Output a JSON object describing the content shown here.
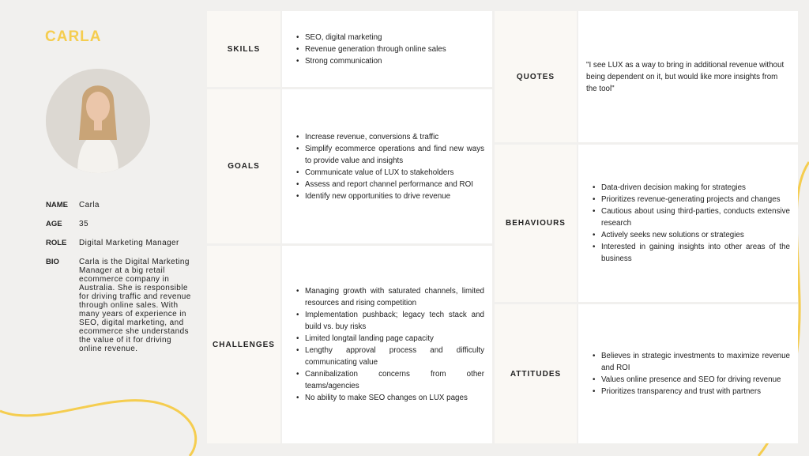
{
  "persona": {
    "title": "CARLA",
    "accent": "#f5cd4f",
    "facts": [
      {
        "k": "NAME",
        "v": "Carla"
      },
      {
        "k": "AGE",
        "v": "35"
      },
      {
        "k": "ROLE",
        "v": "Digital Marketing Manager"
      },
      {
        "k": "BIO",
        "v": "Carla is the  Digital Marketing Manager at a big retail ecommerce company in Australia. She is responsible for driving traffic and revenue through online sales. With many years of experience in SEO, digital marketing, and ecommerce she understands the value of it for driving online revenue."
      }
    ]
  },
  "sections": {
    "skills": {
      "label": "SKILLS",
      "items": [
        "SEO, digital marketing",
        "Revenue generation through online sales",
        "Strong communication"
      ]
    },
    "goals": {
      "label": "GOALS",
      "items": [
        "Increase revenue, conversions & traffic",
        "Simplify ecommerce operations and find new ways to provide value and insights",
        "Communicate value of LUX to stakeholders",
        "Assess and report channel performance and ROI",
        "Identify new opportunities to drive revenue"
      ]
    },
    "challenges": {
      "label": "CHALLENGES",
      "items": [
        "Managing growth with saturated channels, limited resources and rising competition",
        "Implementation pushback; legacy tech stack and build vs. buy risks",
        "Limited longtail landing page capacity",
        "Lengthy approval process and difficulty communicating value",
        "Cannibalization concerns from other teams/agencies",
        "No ability to make SEO changes on LUX pages"
      ]
    },
    "quotes": {
      "label": "QUOTES",
      "text": "\"I see LUX as a way to bring in additional revenue without being dependent on it,  but would like more insights from the tool\""
    },
    "behaviours": {
      "label": "BEHAVIOURS",
      "items": [
        "Data-driven decision making for strategies",
        "Prioritizes revenue-generating projects and changes",
        "Cautious about using third-parties, conducts extensive research",
        "Actively seeks new solutions or strategies",
        "Interested in gaining insights into other areas of the business"
      ]
    },
    "attitudes": {
      "label": "ATTITUDES",
      "items": [
        "Believes in strategic investments to maximize revenue and ROI",
        "Values online presence and SEO for driving revenue",
        "Prioritizes transparency and trust with partners"
      ]
    }
  }
}
